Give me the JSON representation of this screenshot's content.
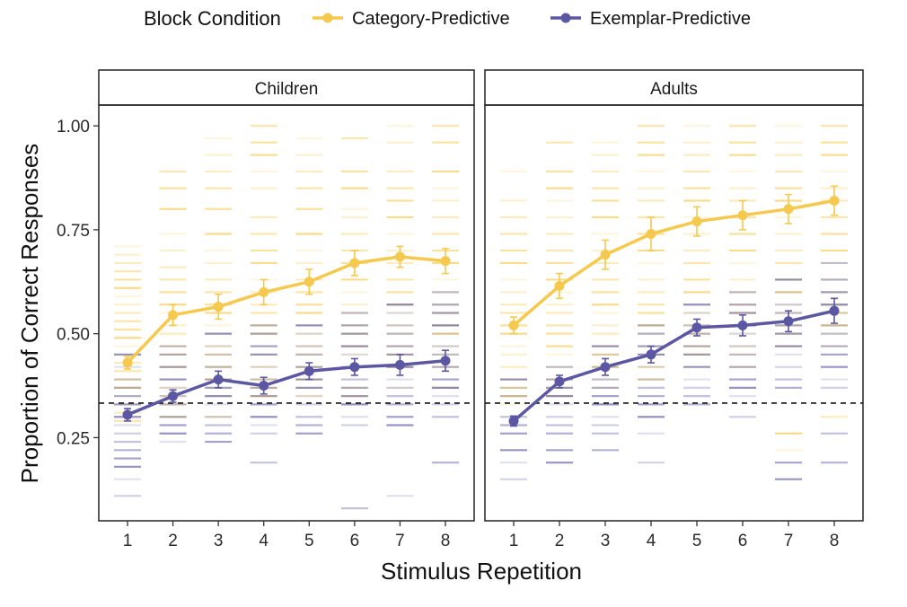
{
  "chart_data": {
    "type": "line",
    "xlabel": "Stimulus Repetition",
    "ylabel": "Proportion of Correct Responses",
    "x": [
      1,
      2,
      3,
      4,
      5,
      6,
      7,
      8
    ],
    "ylim": [
      0.05,
      1.05
    ],
    "y_ticks": [
      0.25,
      0.5,
      0.75,
      1.0
    ],
    "y_tick_labels": [
      "0.25",
      "0.50",
      "0.75",
      "1.00"
    ],
    "chance_line": 0.333,
    "legend": {
      "title": "Block Condition",
      "placement": "top",
      "entries": [
        "Category-Predictive",
        "Exemplar-Predictive"
      ]
    },
    "colors": {
      "category": "#f5c94d",
      "exemplar": "#5b57a3",
      "panel_border": "#222222",
      "strip_bg": "#ffffff"
    },
    "panels": [
      {
        "title": "Children",
        "series": [
          {
            "name": "Category-Predictive",
            "color": "#f5c94d",
            "values": [
              0.43,
              0.545,
              0.565,
              0.6,
              0.625,
              0.67,
              0.685,
              0.675
            ],
            "errors": [
              0.015,
              0.025,
              0.03,
              0.03,
              0.03,
              0.03,
              0.025,
              0.03
            ],
            "individuals": [
              [
                0.71,
                0.69,
                0.67,
                0.65,
                0.63,
                0.61,
                0.59,
                0.57,
                0.55,
                0.53,
                0.51,
                0.49,
                0.47,
                0.45,
                0.43,
                0.41,
                0.39,
                0.37,
                0.35,
                0.33,
                0.31,
                0.29
              ],
              [
                0.89,
                0.85,
                0.8,
                0.74,
                0.7,
                0.66,
                0.63,
                0.6,
                0.57,
                0.55,
                0.52,
                0.5,
                0.47,
                0.45,
                0.42,
                0.39,
                0.37,
                0.35,
                0.33,
                0.3
              ],
              [
                0.97,
                0.93,
                0.89,
                0.85,
                0.8,
                0.74,
                0.7,
                0.67,
                0.63,
                0.6,
                0.57,
                0.55,
                0.52,
                0.5,
                0.47,
                0.45,
                0.42,
                0.39,
                0.37,
                0.35,
                0.3
              ],
              [
                1.0,
                0.96,
                0.93,
                0.89,
                0.85,
                0.78,
                0.74,
                0.7,
                0.67,
                0.63,
                0.6,
                0.57,
                0.55,
                0.52,
                0.5,
                0.47,
                0.45,
                0.42,
                0.39,
                0.37,
                0.35
              ],
              [
                0.97,
                0.93,
                0.89,
                0.85,
                0.8,
                0.74,
                0.7,
                0.67,
                0.63,
                0.6,
                0.57,
                0.55,
                0.52,
                0.5,
                0.47,
                0.45,
                0.42,
                0.39,
                0.37,
                0.35
              ],
              [
                0.97,
                0.89,
                0.85,
                0.8,
                0.78,
                0.74,
                0.7,
                0.67,
                0.63,
                0.6,
                0.57,
                0.55,
                0.52,
                0.5,
                0.47,
                0.45,
                0.42,
                0.37,
                0.35
              ],
              [
                1.0,
                0.96,
                0.89,
                0.85,
                0.82,
                0.78,
                0.74,
                0.7,
                0.67,
                0.63,
                0.6,
                0.57,
                0.55,
                0.52,
                0.5,
                0.47,
                0.45,
                0.42,
                0.37
              ],
              [
                1.0,
                0.96,
                0.89,
                0.85,
                0.82,
                0.78,
                0.74,
                0.7,
                0.67,
                0.63,
                0.6,
                0.57,
                0.55,
                0.52,
                0.5,
                0.47,
                0.45,
                0.42,
                0.37
              ]
            ]
          },
          {
            "name": "Exemplar-Predictive",
            "color": "#5b57a3",
            "values": [
              0.305,
              0.35,
              0.39,
              0.375,
              0.41,
              0.42,
              0.425,
              0.435
            ],
            "errors": [
              0.015,
              0.015,
              0.02,
              0.02,
              0.02,
              0.02,
              0.025,
              0.025
            ],
            "individuals": [
              [
                0.45,
                0.42,
                0.39,
                0.37,
                0.35,
                0.33,
                0.3,
                0.28,
                0.26,
                0.24,
                0.22,
                0.2,
                0.18,
                0.15,
                0.11
              ],
              [
                0.47,
                0.45,
                0.42,
                0.39,
                0.37,
                0.35,
                0.33,
                0.3,
                0.28,
                0.26,
                0.24
              ],
              [
                0.5,
                0.47,
                0.45,
                0.42,
                0.39,
                0.37,
                0.35,
                0.33,
                0.3,
                0.28,
                0.26,
                0.24
              ],
              [
                0.52,
                0.5,
                0.47,
                0.45,
                0.42,
                0.39,
                0.37,
                0.35,
                0.33,
                0.3,
                0.28,
                0.26,
                0.19
              ],
              [
                0.52,
                0.5,
                0.47,
                0.45,
                0.42,
                0.39,
                0.37,
                0.35,
                0.33,
                0.3,
                0.28,
                0.26
              ],
              [
                0.55,
                0.52,
                0.5,
                0.47,
                0.45,
                0.42,
                0.39,
                0.37,
                0.35,
                0.33,
                0.3,
                0.28,
                0.08
              ],
              [
                0.57,
                0.55,
                0.52,
                0.5,
                0.47,
                0.45,
                0.42,
                0.39,
                0.37,
                0.35,
                0.33,
                0.3,
                0.28,
                0.11
              ],
              [
                0.6,
                0.57,
                0.55,
                0.52,
                0.5,
                0.47,
                0.45,
                0.42,
                0.39,
                0.37,
                0.35,
                0.33,
                0.3,
                0.19
              ]
            ]
          }
        ]
      },
      {
        "title": "Adults",
        "series": [
          {
            "name": "Category-Predictive",
            "color": "#f5c94d",
            "values": [
              0.52,
              0.615,
              0.69,
              0.74,
              0.77,
              0.785,
              0.8,
              0.82
            ],
            "errors": [
              0.02,
              0.03,
              0.035,
              0.04,
              0.035,
              0.035,
              0.035,
              0.035
            ],
            "individuals": [
              [
                0.89,
                0.82,
                0.78,
                0.74,
                0.7,
                0.67,
                0.63,
                0.6,
                0.57,
                0.55,
                0.52,
                0.5,
                0.47,
                0.45,
                0.42,
                0.39,
                0.37,
                0.35,
                0.33
              ],
              [
                0.96,
                0.89,
                0.85,
                0.82,
                0.78,
                0.74,
                0.7,
                0.67,
                0.63,
                0.6,
                0.57,
                0.55,
                0.52,
                0.5,
                0.47,
                0.45,
                0.42,
                0.39,
                0.37,
                0.35
              ],
              [
                0.96,
                0.93,
                0.89,
                0.85,
                0.82,
                0.78,
                0.74,
                0.7,
                0.67,
                0.63,
                0.6,
                0.57,
                0.55,
                0.52,
                0.5,
                0.47,
                0.45,
                0.42,
                0.39,
                0.37
              ],
              [
                1.0,
                0.96,
                0.93,
                0.89,
                0.85,
                0.82,
                0.78,
                0.74,
                0.7,
                0.67,
                0.63,
                0.6,
                0.57,
                0.55,
                0.52,
                0.5,
                0.47,
                0.45,
                0.42,
                0.39
              ],
              [
                1.0,
                0.96,
                0.93,
                0.89,
                0.85,
                0.82,
                0.78,
                0.74,
                0.7,
                0.67,
                0.63,
                0.6,
                0.57,
                0.55,
                0.52,
                0.5,
                0.47,
                0.45,
                0.42
              ],
              [
                1.0,
                0.96,
                0.93,
                0.89,
                0.85,
                0.82,
                0.78,
                0.74,
                0.7,
                0.67,
                0.63,
                0.6,
                0.57,
                0.55,
                0.52,
                0.5,
                0.47,
                0.45,
                0.42
              ],
              [
                1.0,
                0.96,
                0.93,
                0.89,
                0.85,
                0.82,
                0.78,
                0.74,
                0.7,
                0.67,
                0.63,
                0.6,
                0.57,
                0.55,
                0.52,
                0.5,
                0.47,
                0.26,
                0.22
              ],
              [
                1.0,
                0.96,
                0.93,
                0.89,
                0.85,
                0.82,
                0.78,
                0.74,
                0.7,
                0.67,
                0.63,
                0.6,
                0.57,
                0.55,
                0.52,
                0.5,
                0.47,
                0.3
              ]
            ]
          },
          {
            "name": "Exemplar-Predictive",
            "color": "#5b57a3",
            "values": [
              0.29,
              0.385,
              0.42,
              0.45,
              0.515,
              0.52,
              0.53,
              0.555
            ],
            "errors": [
              0.012,
              0.015,
              0.02,
              0.02,
              0.02,
              0.025,
              0.025,
              0.03
            ],
            "individuals": [
              [
                0.39,
                0.37,
                0.35,
                0.3,
                0.28,
                0.26,
                0.22,
                0.19,
                0.15
              ],
              [
                0.42,
                0.39,
                0.37,
                0.35,
                0.33,
                0.3,
                0.28,
                0.26,
                0.22,
                0.19
              ],
              [
                0.47,
                0.45,
                0.42,
                0.39,
                0.37,
                0.35,
                0.33,
                0.3,
                0.28,
                0.26,
                0.22
              ],
              [
                0.52,
                0.5,
                0.47,
                0.45,
                0.42,
                0.39,
                0.37,
                0.35,
                0.33,
                0.3,
                0.26,
                0.19
              ],
              [
                0.57,
                0.55,
                0.52,
                0.5,
                0.47,
                0.45,
                0.42,
                0.39,
                0.37,
                0.35,
                0.33
              ],
              [
                0.6,
                0.57,
                0.55,
                0.52,
                0.5,
                0.47,
                0.45,
                0.42,
                0.39,
                0.37,
                0.35,
                0.3
              ],
              [
                0.63,
                0.6,
                0.57,
                0.55,
                0.52,
                0.5,
                0.47,
                0.45,
                0.42,
                0.39,
                0.37,
                0.19,
                0.15
              ],
              [
                0.67,
                0.63,
                0.6,
                0.57,
                0.55,
                0.52,
                0.5,
                0.47,
                0.45,
                0.42,
                0.39,
                0.37,
                0.26,
                0.19
              ]
            ]
          }
        ]
      }
    ]
  }
}
